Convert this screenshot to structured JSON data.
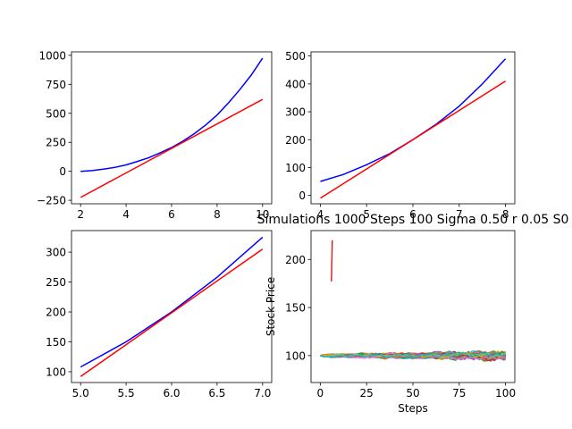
{
  "chart_data": [
    {
      "type": "line",
      "title": "",
      "xlabel": "",
      "ylabel": "",
      "xlim": [
        1.6,
        10.4
      ],
      "ylim": [
        -280,
        1030
      ],
      "xticks": [
        2,
        4,
        6,
        8,
        10
      ],
      "yticks": [
        -250,
        0,
        250,
        500,
        750,
        1000
      ],
      "series": [
        {
          "color": "#0000ff",
          "x": [
            2,
            2.5,
            3,
            3.5,
            4,
            4.5,
            5,
            5.5,
            6,
            6.5,
            7,
            7.5,
            8,
            8.5,
            9,
            9.5,
            10
          ],
          "values": [
            0,
            6,
            18,
            34,
            55,
            85,
            118,
            160,
            205,
            260,
            325,
            400,
            485,
            590,
            705,
            830,
            975
          ]
        },
        {
          "color": "#ff0000",
          "x": [
            2,
            10
          ],
          "values": [
            -225,
            620
          ]
        }
      ]
    },
    {
      "type": "line",
      "title": "",
      "xlabel": "",
      "ylabel": "",
      "xlim": [
        3.8,
        8.2
      ],
      "ylim": [
        -30,
        515
      ],
      "xticks": [
        4,
        5,
        6,
        7,
        8
      ],
      "yticks": [
        0,
        100,
        200,
        300,
        400,
        500
      ],
      "series": [
        {
          "color": "#0000ff",
          "x": [
            4,
            4.5,
            5,
            5.5,
            6,
            6.5,
            7,
            7.5,
            8
          ],
          "values": [
            50,
            75,
            110,
            150,
            200,
            255,
            320,
            400,
            490
          ]
        },
        {
          "color": "#ff0000",
          "x": [
            4,
            8
          ],
          "values": [
            -10,
            410
          ]
        }
      ]
    },
    {
      "type": "line",
      "title": "",
      "xlabel": "",
      "ylabel": "",
      "xlim": [
        4.9,
        7.1
      ],
      "ylim": [
        82,
        336
      ],
      "xticks": [
        5.0,
        5.5,
        6.0,
        6.5,
        7.0
      ],
      "yticks": [
        100,
        150,
        200,
        250,
        300
      ],
      "series": [
        {
          "color": "#0000ff",
          "x": [
            5,
            5.5,
            6,
            6.5,
            7
          ],
          "values": [
            108,
            150,
            200,
            258,
            325
          ]
        },
        {
          "color": "#ff0000",
          "x": [
            5,
            7
          ],
          "values": [
            92,
            305
          ]
        }
      ]
    },
    {
      "type": "line",
      "title": "Simulations 1000 Steps 100 Sigma 0.50 r 0.05 S0",
      "xlabel": "Steps",
      "ylabel": "Stock Price",
      "xlim": [
        -5,
        105
      ],
      "ylim": [
        72,
        230
      ],
      "xticks": [
        0,
        25,
        50,
        75,
        100
      ],
      "yticks": [
        100,
        150,
        200
      ],
      "paths": {
        "count": 60,
        "steps": 100,
        "start": 100,
        "spread": 12,
        "colors": [
          "#1f77b4",
          "#ff7f0e",
          "#2ca02c",
          "#d62728",
          "#9467bd",
          "#8c564b",
          "#e377c2",
          "#7f7f7f",
          "#bcbd22",
          "#17becf"
        ]
      },
      "series": [
        {
          "color": "#d62728",
          "x": [
            6,
            6.5
          ],
          "values": [
            177,
            220
          ]
        }
      ]
    }
  ]
}
